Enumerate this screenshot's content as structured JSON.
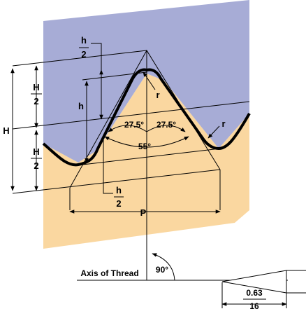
{
  "colors": {
    "upper_fill": "#a7acd6",
    "lower_fill": "#fad7a0",
    "stroke": "#000000",
    "background": "#ffffff"
  },
  "labels": {
    "h_half_top_num": "h",
    "h_half_top_den": "2",
    "H_half_top_num": "H",
    "H_half_top_den": "2",
    "H": "H",
    "h": "h",
    "H_half_bot_num": "H",
    "H_half_bot_den": "2",
    "r_top": "r",
    "r_right": "r",
    "angle_left": "27.5°",
    "angle_right": "27.5°",
    "angle_total": "55°",
    "h_half_bot_num": "h",
    "h_half_bot_den": "2",
    "P": "P",
    "axis_label": "Axis of Thread",
    "angle_90": "90°",
    "taper_num": "0.63",
    "taper_den": "16"
  }
}
